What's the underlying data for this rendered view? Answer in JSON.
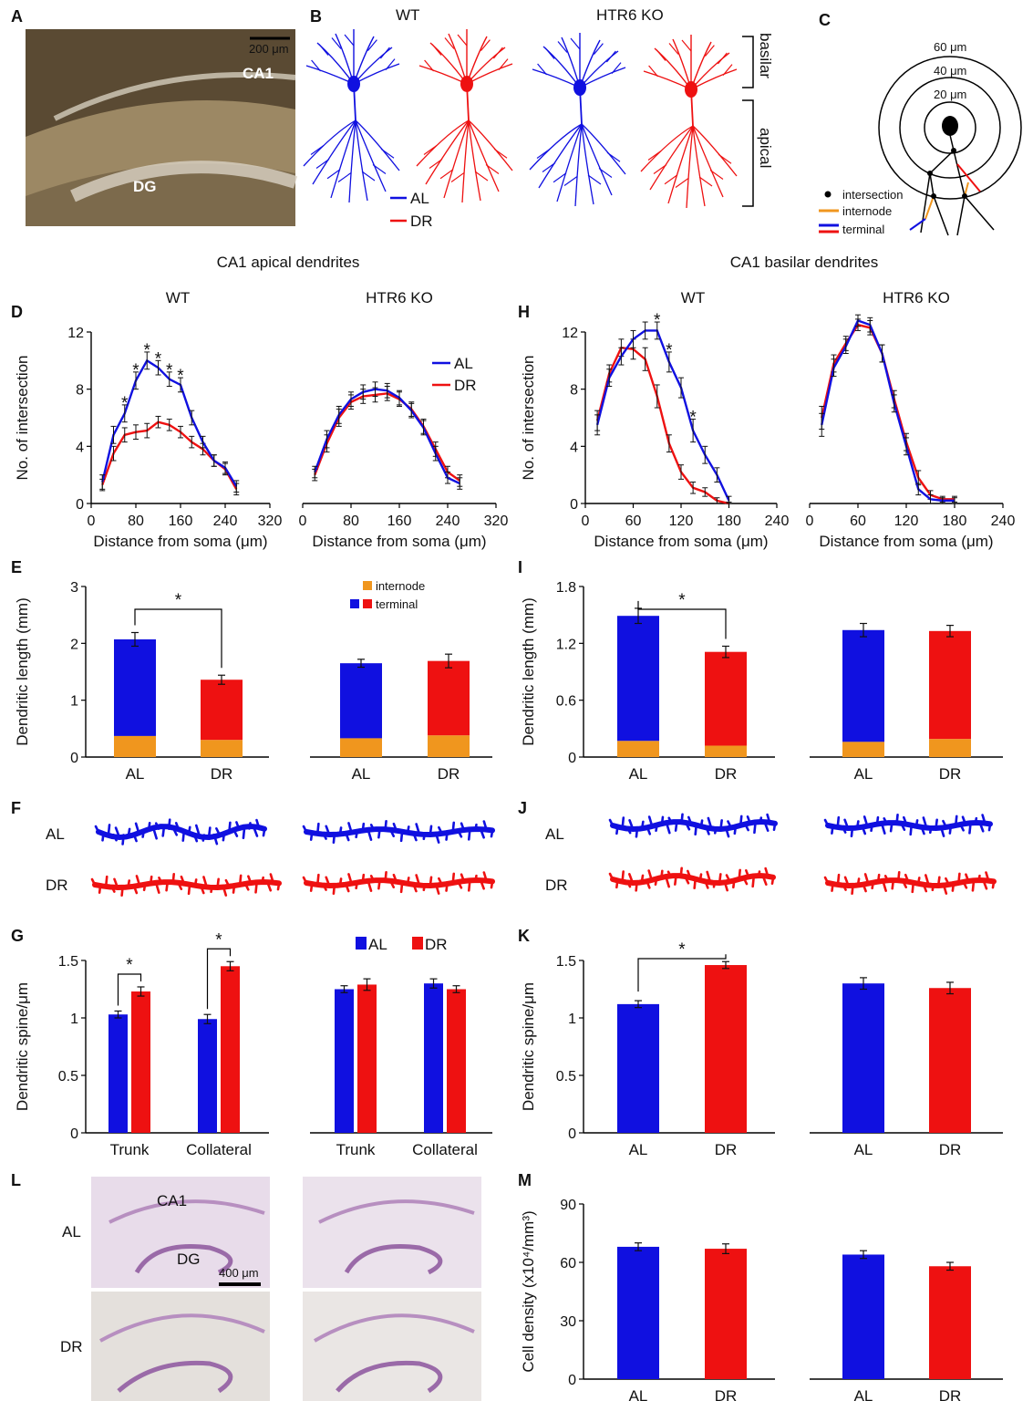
{
  "colors": {
    "al": "#1010e0",
    "dr": "#ee1111",
    "internode": "#f0961e",
    "axis": "#000000",
    "micro_bg": "#8a7a5a",
    "stain_bg": "#e8dcea"
  },
  "panel_labels": {
    "A": "A",
    "B": "B",
    "C": "C",
    "D": "D",
    "E": "E",
    "F": "F",
    "G": "G",
    "H": "H",
    "I": "I",
    "J": "J",
    "K": "K",
    "L": "L",
    "M": "M"
  },
  "panelA": {
    "scale": "200 μm",
    "ca1": "CA1",
    "dg": "DG"
  },
  "panelB": {
    "wt": "WT",
    "ko": "HTR6 KO",
    "basilar": "basilar",
    "apical": "apical",
    "al": "AL",
    "dr": "DR"
  },
  "panelC": {
    "r60": "60 μm",
    "r40": "40 μm",
    "r20": "20 μm",
    "intersection": "intersection",
    "internode": "internode",
    "terminal": "terminal"
  },
  "section_titles": {
    "apical": "CA1 apical dendrites",
    "basilar": "CA1 basilar dendrites"
  },
  "panelL": {
    "al": "AL",
    "dr": "DR",
    "ca1": "CA1",
    "dg": "DG",
    "scale": "400 μm"
  },
  "panelF": {
    "al": "AL",
    "dr": "DR"
  },
  "panelJ": {
    "al": "AL",
    "dr": "DR"
  },
  "chart_data": [
    {
      "id": "D_WT",
      "type": "line",
      "title": "WT",
      "xlabel": "Distance from soma (μm)",
      "ylabel": "No. of intersection",
      "xlim": [
        0,
        320
      ],
      "ylim": [
        0,
        12
      ],
      "xticks": [
        "0",
        "80",
        "160",
        "240",
        "320"
      ],
      "yticks": [
        "0",
        "4",
        "8",
        "12"
      ],
      "x": [
        20,
        40,
        60,
        80,
        100,
        120,
        140,
        160,
        180,
        200,
        220,
        240,
        260
      ],
      "series": [
        {
          "name": "AL",
          "values": [
            1.5,
            4.8,
            6.3,
            8.6,
            10.0,
            9.5,
            8.7,
            8.3,
            6.0,
            4.3,
            3.0,
            2.5,
            1.2
          ],
          "err": [
            0.5,
            0.6,
            0.6,
            0.6,
            0.6,
            0.5,
            0.5,
            0.5,
            0.5,
            0.4,
            0.4,
            0.4,
            0.4
          ]
        },
        {
          "name": "DR",
          "values": [
            1.3,
            3.5,
            4.8,
            5.0,
            5.1,
            5.7,
            5.5,
            5.0,
            4.3,
            3.8,
            3.0,
            2.4,
            1.0
          ],
          "err": [
            0.4,
            0.5,
            0.5,
            0.5,
            0.5,
            0.4,
            0.4,
            0.4,
            0.4,
            0.4,
            0.4,
            0.4,
            0.4
          ]
        }
      ],
      "stars_at_x": [
        60,
        80,
        100,
        120,
        140,
        160
      ]
    },
    {
      "id": "D_KO",
      "type": "line",
      "title": "HTR6 KO",
      "xlabel": "Distance from soma (μm)",
      "ylabel": "",
      "xlim": [
        0,
        320
      ],
      "ylim": [
        0,
        12
      ],
      "xticks": [
        "0",
        "80",
        "160",
        "240",
        "320"
      ],
      "yticks": [],
      "x": [
        20,
        40,
        60,
        80,
        100,
        120,
        140,
        160,
        180,
        200,
        220,
        240,
        260
      ],
      "series": [
        {
          "name": "AL",
          "values": [
            2.2,
            4.5,
            6.2,
            7.3,
            7.8,
            8.0,
            7.9,
            7.4,
            6.5,
            5.3,
            3.5,
            1.8,
            1.4
          ],
          "err": [
            0.4,
            0.6,
            0.6,
            0.5,
            0.5,
            0.5,
            0.5,
            0.5,
            0.5,
            0.5,
            0.5,
            0.4,
            0.4
          ]
        },
        {
          "name": "DR",
          "values": [
            2.0,
            4.2,
            6.0,
            7.1,
            7.5,
            7.6,
            7.7,
            7.3,
            6.6,
            5.4,
            3.8,
            2.2,
            1.6
          ],
          "err": [
            0.4,
            0.6,
            0.6,
            0.5,
            0.5,
            0.5,
            0.5,
            0.5,
            0.5,
            0.5,
            0.5,
            0.4,
            0.4
          ]
        }
      ],
      "legend": [
        "AL",
        "DR"
      ]
    },
    {
      "id": "H_WT",
      "type": "line",
      "title": "WT",
      "xlabel": "Distance from soma (μm)",
      "ylabel": "No. of intersection",
      "xlim": [
        0,
        240
      ],
      "ylim": [
        0,
        12
      ],
      "xticks": [
        "0",
        "60",
        "120",
        "180",
        "240"
      ],
      "yticks": [
        "0",
        "4",
        "8",
        "12"
      ],
      "x": [
        15,
        30,
        45,
        60,
        75,
        90,
        105,
        120,
        135,
        150,
        165,
        180
      ],
      "series": [
        {
          "name": "AL",
          "values": [
            5.5,
            8.8,
            10.3,
            11.5,
            12.1,
            12.1,
            9.9,
            8.1,
            5.1,
            3.4,
            2.0,
            0.2
          ],
          "err": [
            0.7,
            0.6,
            0.6,
            0.6,
            0.6,
            0.6,
            0.7,
            0.7,
            0.8,
            0.6,
            0.5,
            0.3
          ]
        },
        {
          "name": "DR",
          "values": [
            5.8,
            9.1,
            10.9,
            10.8,
            10.1,
            7.5,
            4.2,
            2.2,
            1.1,
            0.8,
            0.2,
            0.0
          ],
          "err": [
            0.7,
            0.6,
            0.6,
            0.7,
            0.8,
            0.8,
            0.6,
            0.5,
            0.4,
            0.3,
            0.2,
            0.1
          ]
        }
      ],
      "stars_at_x": [
        90,
        105,
        135
      ]
    },
    {
      "id": "H_KO",
      "type": "line",
      "title": "HTR6 KO",
      "xlabel": "Distance from soma (μm)",
      "ylabel": "",
      "xlim": [
        0,
        240
      ],
      "ylim": [
        0,
        12
      ],
      "xticks": [
        "0",
        "60",
        "120",
        "180",
        "240"
      ],
      "yticks": [],
      "x": [
        15,
        30,
        45,
        60,
        75,
        90,
        105,
        120,
        135,
        150,
        165,
        180
      ],
      "series": [
        {
          "name": "AL",
          "values": [
            5.5,
            9.5,
            11.0,
            12.8,
            12.5,
            10.5,
            7.0,
            4.0,
            1.0,
            0.3,
            0.2,
            0.2
          ],
          "err": [
            0.8,
            0.6,
            0.5,
            0.4,
            0.5,
            0.6,
            0.6,
            0.6,
            0.4,
            0.3,
            0.2,
            0.2
          ]
        },
        {
          "name": "DR",
          "values": [
            6.0,
            9.8,
            11.2,
            12.5,
            12.3,
            10.5,
            7.3,
            4.3,
            1.8,
            0.6,
            0.3,
            0.3
          ],
          "err": [
            0.8,
            0.6,
            0.5,
            0.4,
            0.5,
            0.6,
            0.6,
            0.6,
            0.5,
            0.3,
            0.2,
            0.2
          ]
        }
      ]
    },
    {
      "id": "E_WT",
      "type": "bar",
      "ylabel": "Dendritic length (mm)",
      "categories": [
        "AL",
        "DR"
      ],
      "ylim": [
        0,
        3
      ],
      "yticks": [
        "0",
        "1",
        "2",
        "3"
      ],
      "total": [
        2.07,
        1.36
      ],
      "err": [
        0.12,
        0.08
      ],
      "internode": [
        0.37,
        0.3
      ],
      "significance": "*"
    },
    {
      "id": "E_KO",
      "type": "bar",
      "ylabel": "",
      "categories": [
        "AL",
        "DR"
      ],
      "ylim": [
        0,
        3
      ],
      "yticks": [],
      "total": [
        1.65,
        1.69
      ],
      "err": [
        0.07,
        0.12
      ],
      "internode": [
        0.33,
        0.38
      ],
      "legend": [
        "internode",
        "terminal"
      ]
    },
    {
      "id": "I_WT",
      "type": "bar",
      "ylabel": "Dendritic length (mm)",
      "categories": [
        "AL",
        "DR"
      ],
      "ylim": [
        0,
        1.8
      ],
      "yticks": [
        "0",
        "0.6",
        "1.2",
        "1.8"
      ],
      "total": [
        1.49,
        1.11
      ],
      "err": [
        0.08,
        0.06
      ],
      "internode": [
        0.17,
        0.12
      ],
      "significance": "*"
    },
    {
      "id": "I_KO",
      "type": "bar",
      "ylabel": "",
      "categories": [
        "AL",
        "DR"
      ],
      "ylim": [
        0,
        1.8
      ],
      "yticks": [],
      "total": [
        1.34,
        1.33
      ],
      "err": [
        0.07,
        0.06
      ],
      "internode": [
        0.16,
        0.19
      ]
    },
    {
      "id": "G_WT",
      "type": "bar",
      "ylabel": "Dendritic spine/μm",
      "categories": [
        "Trunk",
        "Collateral"
      ],
      "ylim": [
        0,
        1.5
      ],
      "yticks": [
        "0",
        "0.5",
        "1",
        "1.5"
      ],
      "series": [
        {
          "name": "AL",
          "values": [
            1.03,
            0.99
          ],
          "err": [
            0.03,
            0.04
          ]
        },
        {
          "name": "DR",
          "values": [
            1.23,
            1.45
          ],
          "err": [
            0.04,
            0.04
          ]
        }
      ],
      "significance": [
        "*",
        "*"
      ]
    },
    {
      "id": "G_KO",
      "type": "bar",
      "ylabel": "",
      "categories": [
        "Trunk",
        "Collateral"
      ],
      "ylim": [
        0,
        1.5
      ],
      "yticks": [],
      "series": [
        {
          "name": "AL",
          "values": [
            1.25,
            1.3
          ],
          "err": [
            0.03,
            0.04
          ]
        },
        {
          "name": "DR",
          "values": [
            1.29,
            1.25
          ],
          "err": [
            0.05,
            0.03
          ]
        }
      ],
      "legend": [
        "AL",
        "DR"
      ]
    },
    {
      "id": "K_WT",
      "type": "bar",
      "ylabel": "Dendritic spine/μm",
      "categories": [
        "AL",
        "DR"
      ],
      "ylim": [
        0,
        1.5
      ],
      "yticks": [
        "0",
        "0.5",
        "1",
        "1.5"
      ],
      "values": [
        1.12,
        1.46
      ],
      "err": [
        0.03,
        0.03
      ],
      "significance": "*"
    },
    {
      "id": "K_KO",
      "type": "bar",
      "ylabel": "",
      "categories": [
        "AL",
        "DR"
      ],
      "ylim": [
        0,
        1.5
      ],
      "yticks": [],
      "values": [
        1.3,
        1.26
      ],
      "err": [
        0.05,
        0.05
      ]
    },
    {
      "id": "M_WT",
      "type": "bar",
      "ylabel": "Cell density (x10⁴/mm³)",
      "categories": [
        "AL",
        "DR"
      ],
      "ylim": [
        0,
        90
      ],
      "yticks": [
        "0",
        "30",
        "60",
        "90"
      ],
      "values": [
        68,
        67
      ],
      "err": [
        2,
        2.5
      ]
    },
    {
      "id": "M_KO",
      "type": "bar",
      "ylabel": "",
      "categories": [
        "AL",
        "DR"
      ],
      "ylim": [
        0,
        90
      ],
      "yticks": [],
      "values": [
        64,
        58
      ],
      "err": [
        2,
        2
      ]
    }
  ]
}
